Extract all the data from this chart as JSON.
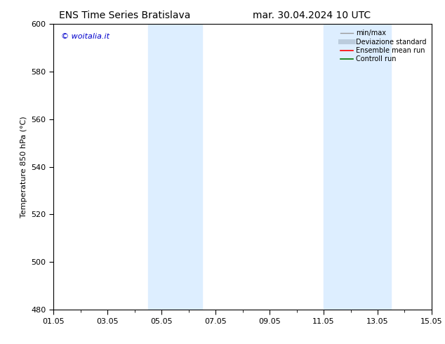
{
  "title_left": "ENS Time Series Bratislava",
  "title_right": "mar. 30.04.2024 10 UTC",
  "ylabel": "Temperature 850 hPa (°C)",
  "ylim": [
    480,
    600
  ],
  "yticks": [
    480,
    500,
    520,
    540,
    560,
    580,
    600
  ],
  "xtick_labels": [
    "01.05",
    "03.05",
    "05.05",
    "07.05",
    "09.05",
    "11.05",
    "13.05",
    "15.05"
  ],
  "xtick_positions": [
    0,
    2,
    4,
    6,
    8,
    10,
    12,
    14
  ],
  "xlim": [
    0,
    14
  ],
  "shade_regions": [
    {
      "x_start": 3.5,
      "x_end": 5.5
    },
    {
      "x_start": 10.0,
      "x_end": 12.5
    }
  ],
  "shade_color": "#ddeeff",
  "background_color": "#ffffff",
  "plot_bg_color": "#ffffff",
  "border_color": "#000000",
  "watermark_text": "© woitalia.it",
  "watermark_color": "#0000cc",
  "legend_items": [
    {
      "label": "min/max",
      "color": "#999999",
      "lw": 1.0
    },
    {
      "label": "Deviazione standard",
      "color": "#bbccdd",
      "lw": 5
    },
    {
      "label": "Ensemble mean run",
      "color": "#ff0000",
      "lw": 1.2
    },
    {
      "label": "Controll run",
      "color": "#007700",
      "lw": 1.2
    }
  ],
  "title_fontsize": 10,
  "tick_fontsize": 8,
  "ylabel_fontsize": 8,
  "legend_fontsize": 7,
  "watermark_fontsize": 8
}
